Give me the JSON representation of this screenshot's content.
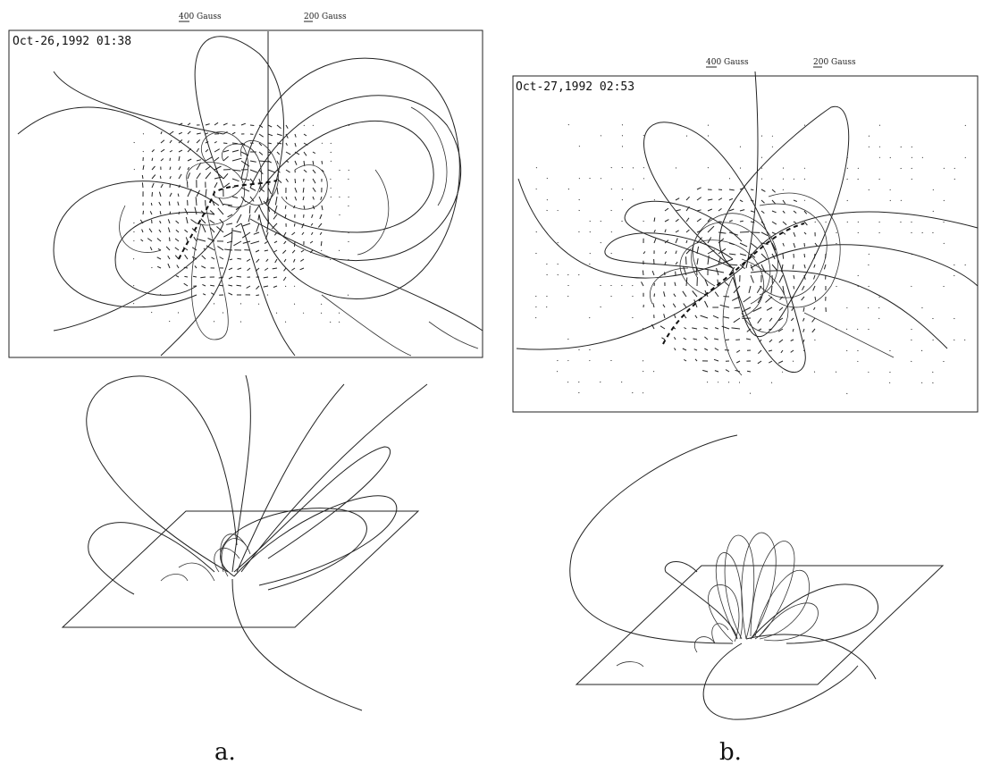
{
  "panels": [
    {
      "id": "a",
      "label": "a.",
      "timestamp": "Oct-26,1992 01:38",
      "scale_labels": [
        "400 Gauss",
        "200 Gauss"
      ]
    },
    {
      "id": "b",
      "label": "b.",
      "timestamp": "Oct-27,1992 02:53",
      "scale_labels": [
        "400 Gauss",
        "200 Gauss"
      ]
    }
  ]
}
